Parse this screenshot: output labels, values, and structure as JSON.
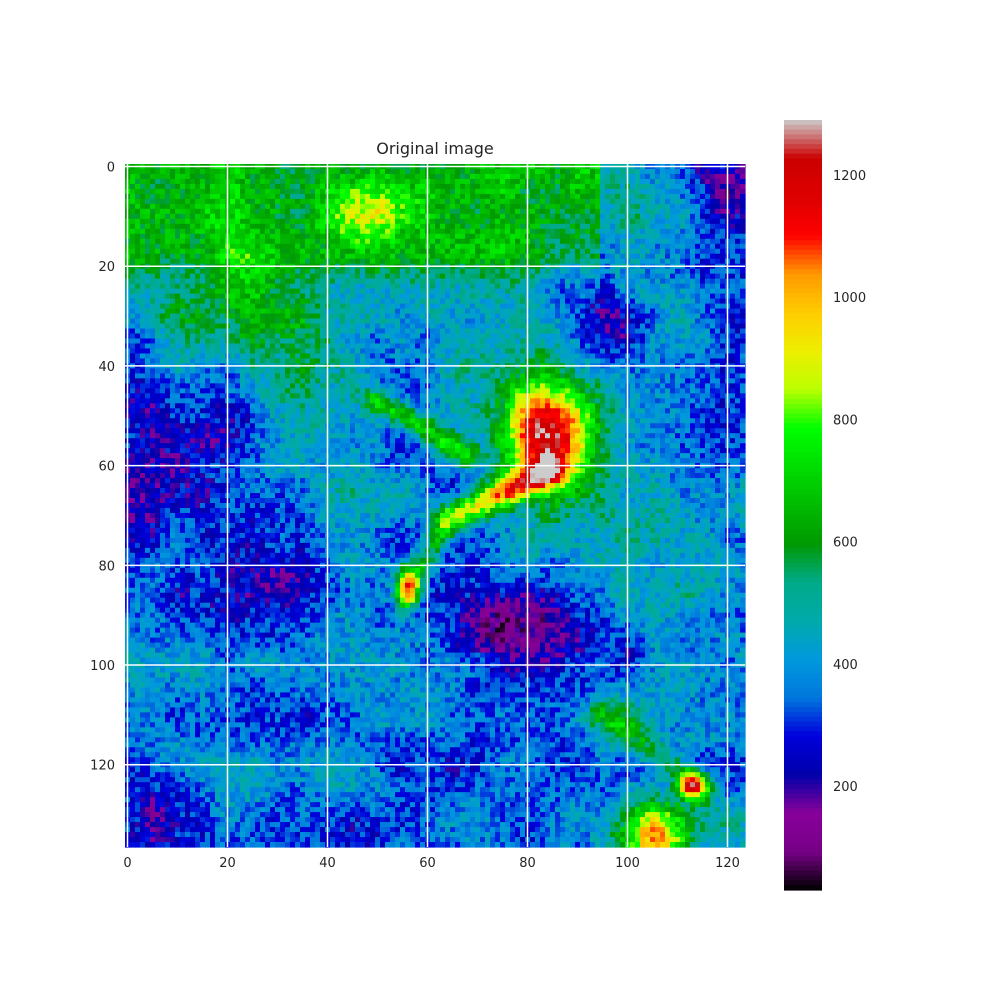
{
  "chart_data": {
    "type": "heatmap",
    "title": "Original image",
    "xlabel": "",
    "ylabel": "",
    "colormap": "nipy_spectral",
    "grid": true,
    "grid_color": "#ffffff",
    "x_range": [
      0,
      124
    ],
    "y_range": [
      137,
      0
    ],
    "x_ticks": [
      "0",
      "20",
      "40",
      "60",
      "80",
      "100",
      "120"
    ],
    "y_ticks": [
      "0",
      "20",
      "40",
      "60",
      "80",
      "100",
      "120"
    ],
    "colorbar": {
      "range": [
        30,
        1290
      ],
      "ticks": [
        "200",
        "400",
        "600",
        "800",
        "1000",
        "1200"
      ]
    },
    "image_features": [
      {
        "feature": "bright blob",
        "cx": 84,
        "cy": 53,
        "peak": 1220
      },
      {
        "feature": "bright spot",
        "cx": 113,
        "cy": 124,
        "peak": 1180
      },
      {
        "feature": "bright region",
        "cx": 105,
        "cy": 133,
        "peak": 980
      },
      {
        "feature": "yellow ridge",
        "from": [
          65,
          71
        ],
        "to": [
          84,
          62
        ],
        "level": 950
      },
      {
        "feature": "yellow spot",
        "cx": 56,
        "cy": 84,
        "level": 930
      },
      {
        "feature": "dark region",
        "cx": 80,
        "cy": 94,
        "level": 160
      },
      {
        "feature": "dark region",
        "cx": 8,
        "cy": 52,
        "level": 200
      },
      {
        "feature": "dark region",
        "cx": 5,
        "cy": 131,
        "level": 170
      },
      {
        "feature": "dark region",
        "cx": 121,
        "cy": 7,
        "level": 140
      },
      {
        "feature": "green region",
        "cx": 30,
        "cy": 15,
        "level": 700
      }
    ]
  }
}
